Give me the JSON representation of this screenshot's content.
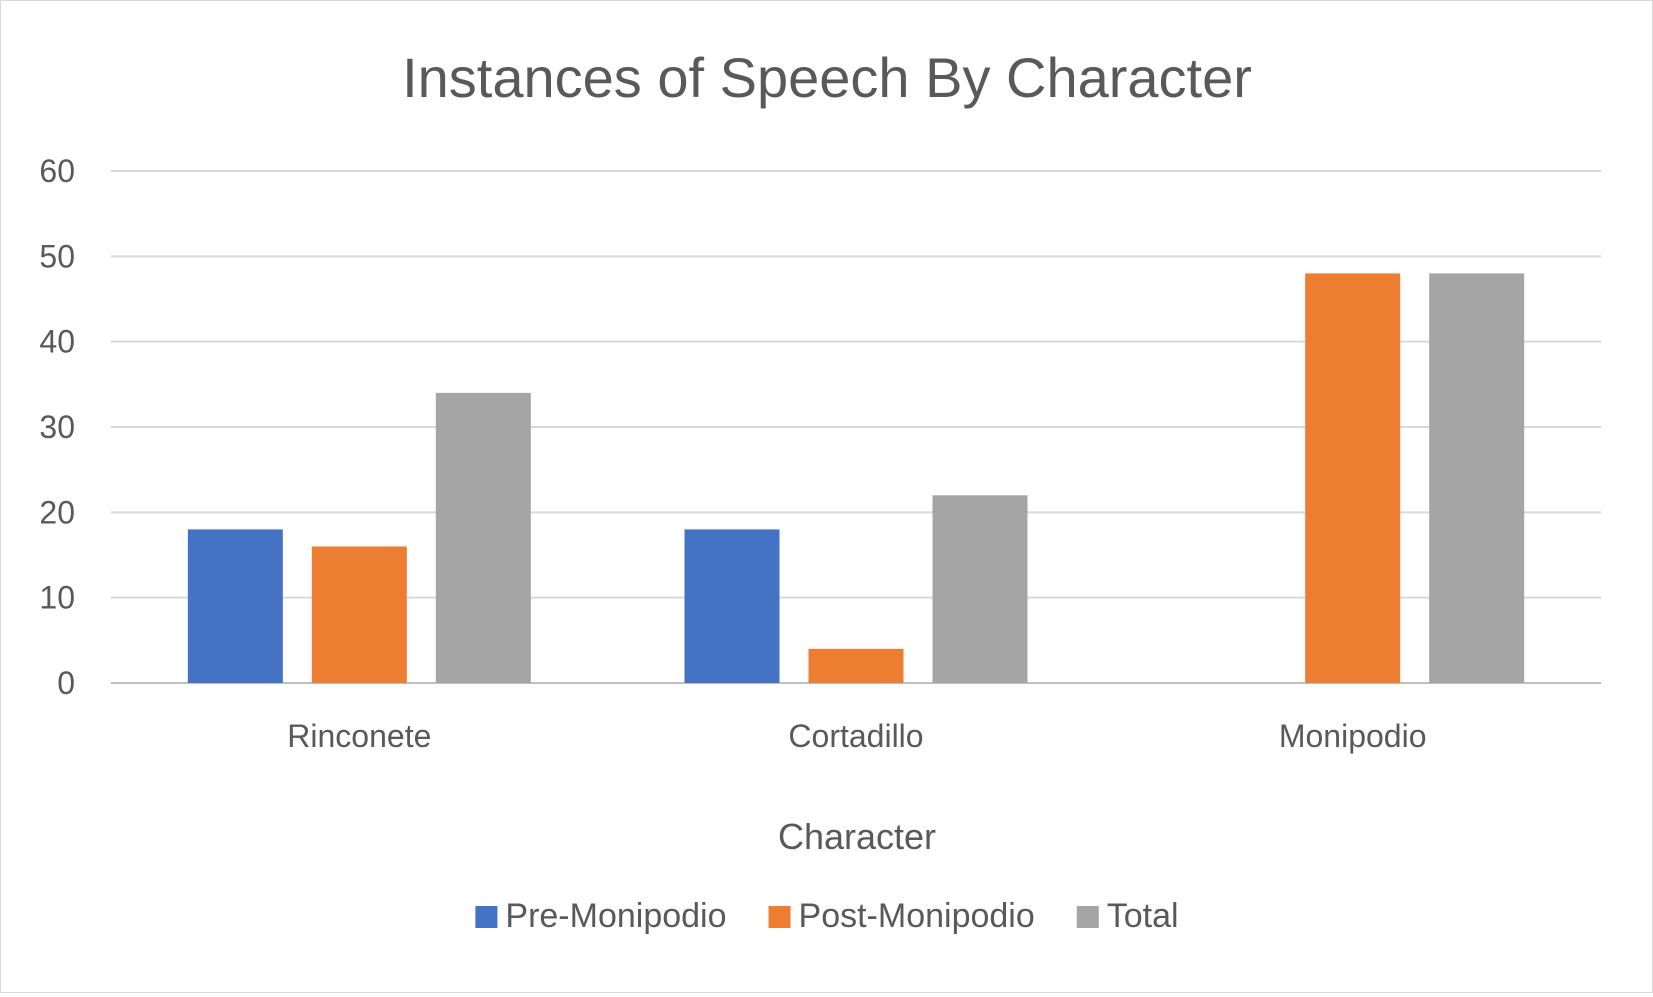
{
  "chart_data": {
    "type": "bar",
    "title": "Instances of Speech By Character",
    "xlabel": "Character",
    "ylabel": "",
    "ylim": [
      0,
      60
    ],
    "y_ticks": [
      0,
      10,
      20,
      30,
      40,
      50,
      60
    ],
    "grid": true,
    "legend_position": "bottom",
    "categories": [
      "Rinconete",
      "Cortadillo",
      "Monipodio"
    ],
    "series": [
      {
        "name": "Pre-Monipodio",
        "color": "#4472C4",
        "values": [
          18,
          18,
          0
        ]
      },
      {
        "name": "Post-Monipodio",
        "color": "#ED7D31",
        "values": [
          16,
          4,
          48
        ]
      },
      {
        "name": "Total",
        "color": "#A5A5A5",
        "values": [
          34,
          22,
          48
        ]
      }
    ]
  }
}
